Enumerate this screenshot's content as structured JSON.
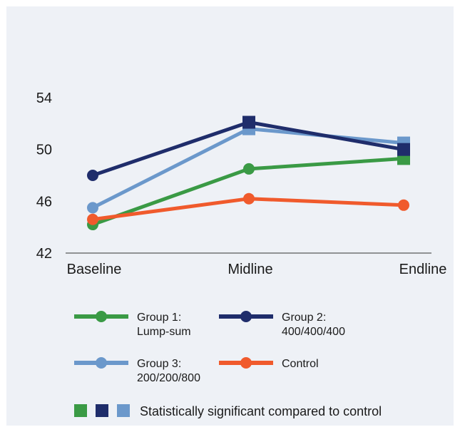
{
  "chart_data": {
    "type": "line",
    "categories": [
      "Baseline",
      "Midline",
      "Endline"
    ],
    "ylim": [
      42,
      54
    ],
    "yticks": [
      42,
      46,
      50,
      54
    ],
    "grid": false,
    "legend_position": "bottom",
    "series": [
      {
        "name_lines": [
          "Group 1:",
          "Lump-sum"
        ],
        "color": "#3a9a45",
        "values": [
          44.2,
          48.5,
          49.3
        ],
        "significant": [
          false,
          false,
          true
        ]
      },
      {
        "name_lines": [
          "Group 2:",
          "400/400/400"
        ],
        "color": "#1f2d6b",
        "values": [
          48.0,
          52.1,
          50.0
        ],
        "significant": [
          false,
          true,
          true
        ]
      },
      {
        "name_lines": [
          "Group 3:",
          "200/200/800"
        ],
        "color": "#6b98cb",
        "values": [
          45.5,
          51.6,
          50.5
        ],
        "significant": [
          false,
          true,
          true
        ]
      },
      {
        "name_lines": [
          "Control"
        ],
        "color": "#f05a2c",
        "values": [
          44.6,
          46.2,
          45.7
        ],
        "significant": [
          false,
          false,
          false
        ]
      }
    ],
    "significance_note": "Statistically significant compared to control",
    "significance_colors": [
      "#3a9a45",
      "#1f2d6b",
      "#6b98cb"
    ]
  }
}
